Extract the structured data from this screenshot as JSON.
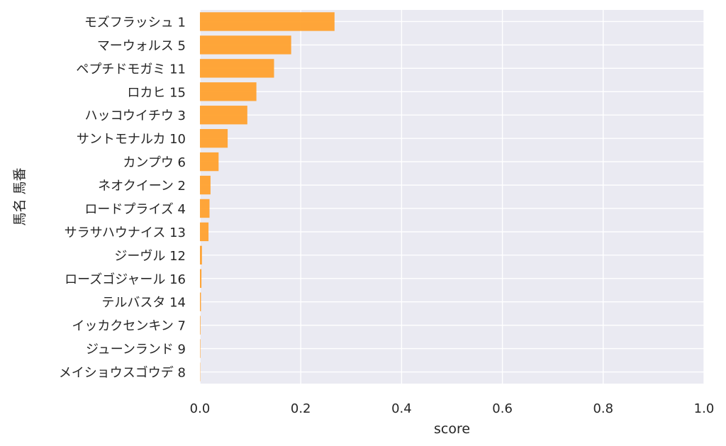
{
  "chart_data": {
    "type": "bar",
    "orientation": "horizontal",
    "title": "",
    "xlabel": "score",
    "ylabel": "馬名 馬番",
    "xlim": [
      0.0,
      1.0
    ],
    "xticks": [
      "0.0",
      "0.2",
      "0.4",
      "0.6",
      "0.8",
      "1.0"
    ],
    "grid": true,
    "bar_color": "#ffa12e",
    "background_color": "#eaeaf2",
    "grid_color": "#ffffff",
    "categories": [
      "モズフラッシュ 1",
      "マーウォルス 5",
      "ペプチドモガミ 11",
      "ロカヒ 15",
      "ハッコウイチウ 3",
      "サントモナルカ 10",
      "カンプウ 6",
      "ネオクイーン 2",
      "ロードプライズ 4",
      "サラサハウナイス 13",
      "ジーヴル 12",
      "ローズゴジャール 16",
      "テルバスタ 14",
      "イッカクセンキン 7",
      "ジューンランド 9",
      "メイショウスゴウデ 8"
    ],
    "values": [
      0.267,
      0.181,
      0.147,
      0.112,
      0.094,
      0.055,
      0.037,
      0.021,
      0.019,
      0.017,
      0.004,
      0.003,
      0.002,
      0.001,
      0.0008,
      0.0005
    ]
  }
}
